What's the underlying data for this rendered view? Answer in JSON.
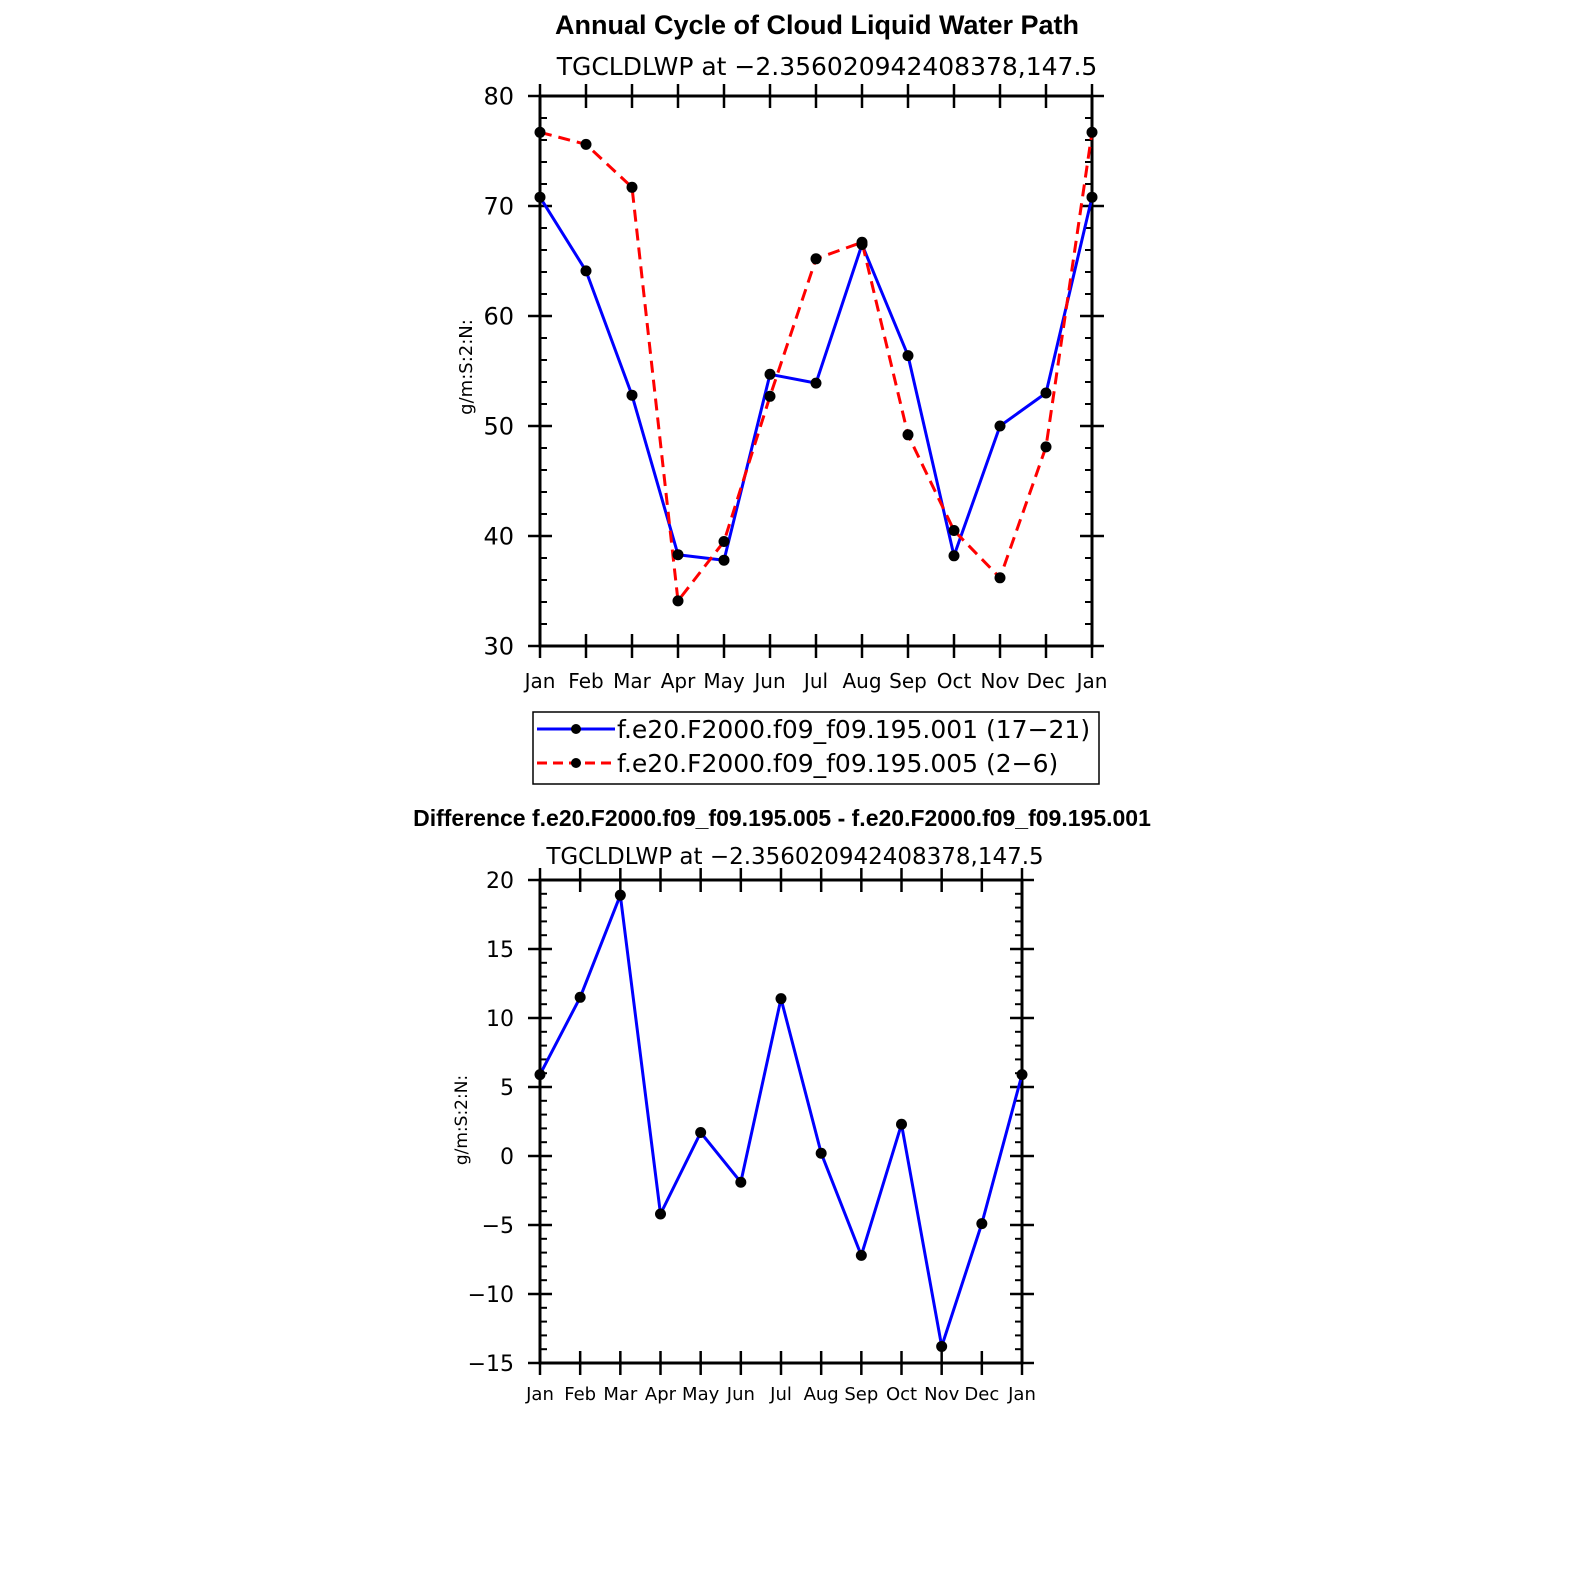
{
  "chart_data": [
    {
      "type": "line",
      "title": "Annual Cycle of Cloud Liquid Water Path",
      "subtitle": "TGCLDLWP at −2.356020942408378,147.5",
      "xlabel": "",
      "ylabel": "g/m:S:2:N:",
      "categories": [
        "Jan",
        "Feb",
        "Mar",
        "Apr",
        "May",
        "Jun",
        "Jul",
        "Aug",
        "Sep",
        "Oct",
        "Nov",
        "Dec",
        "Jan"
      ],
      "ylim": [
        30,
        80
      ],
      "yticks": [
        "30",
        "40",
        "50",
        "60",
        "70",
        "80"
      ],
      "series": [
        {
          "name": "f.e20.F2000.f09_f09.195.001 (17−21)",
          "color": "#0000ff",
          "dashed": false,
          "values": [
            70.8,
            64.1,
            52.8,
            38.3,
            37.8,
            54.7,
            53.9,
            66.5,
            56.4,
            38.2,
            50.0,
            53.0,
            70.8
          ]
        },
        {
          "name": "f.e20.F2000.f09_f09.195.005 (2−6)",
          "color": "#ff0000",
          "dashed": true,
          "values": [
            76.7,
            75.6,
            71.7,
            34.1,
            39.5,
            52.7,
            65.2,
            66.7,
            49.2,
            40.5,
            36.2,
            48.1,
            76.7
          ]
        }
      ],
      "legend": "bottom"
    },
    {
      "type": "line",
      "title": "Difference f.e20.F2000.f09_f09.195.005 - f.e20.F2000.f09_f09.195.001",
      "subtitle": "TGCLDLWP at −2.356020942408378,147.5",
      "xlabel": "",
      "ylabel": "g/m:S:2:N:",
      "categories": [
        "Jan",
        "Feb",
        "Mar",
        "Apr",
        "May",
        "Jun",
        "Jul",
        "Aug",
        "Sep",
        "Oct",
        "Nov",
        "Dec",
        "Jan"
      ],
      "ylim": [
        -15,
        20
      ],
      "yticks": [
        "−15",
        "−10",
        "−5",
        "0",
        "5",
        "10",
        "15",
        "20"
      ],
      "series": [
        {
          "name": "Difference",
          "color": "#0000ff",
          "dashed": false,
          "values": [
            5.9,
            11.5,
            18.9,
            -4.2,
            1.7,
            -1.9,
            11.4,
            0.2,
            -7.2,
            2.3,
            -13.8,
            -4.9,
            5.9
          ]
        }
      ]
    }
  ]
}
